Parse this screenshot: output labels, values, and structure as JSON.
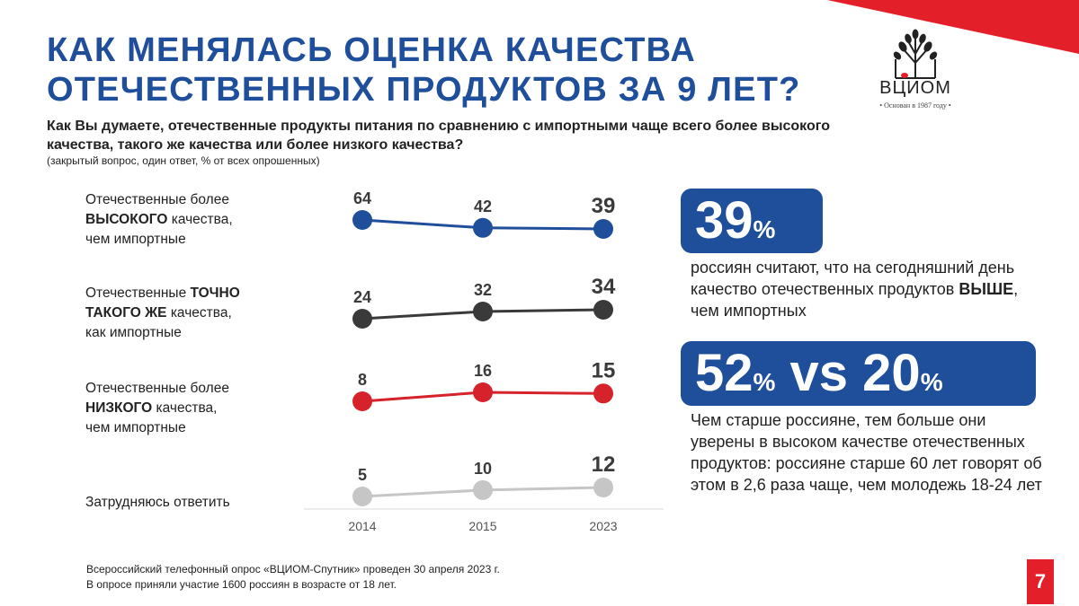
{
  "title": {
    "line1": "КАК МЕНЯЛАСЬ ОЦЕНКА КАЧЕСТВА",
    "line2": "ОТЕЧЕСТВЕННЫХ ПРОДУКТОВ ЗА 9 ЛЕТ?"
  },
  "logo": {
    "name": "ВЦИОМ",
    "tagline": "• Основан в 1987 году •"
  },
  "question": {
    "text": "Как Вы думаете, отечественные продукты питания по сравнению с импортными чаще всего более высокого качества, такого же качества или более низкого качества?",
    "note": "(закрытый вопрос, один ответ, % от всех опрошенных)"
  },
  "row_labels": {
    "higher": {
      "pre": "Отечественные более",
      "bold": "ВЫСОКОГО",
      "post": "качества,",
      "end": "чем импортные"
    },
    "same": {
      "pre": "Отечественные",
      "bold1": "ТОЧНО",
      "bold2": "ТАКОГО ЖЕ",
      "post": "качества,",
      "end": "как импортные"
    },
    "lower": {
      "pre": "Отечественные более",
      "bold": "НИЗКОГО",
      "post": "качества,",
      "end": "чем импортные"
    },
    "unsure": "Затрудняюсь ответить"
  },
  "chart_data": {
    "type": "line",
    "title": "Как Вы думаете, отечественные продукты питания по сравнению с импортными чаще всего более высокого качества, такого же качества или более низкого качества?",
    "xlabel": "",
    "ylabel": "% от всех опрошенных",
    "categories": [
      "2014",
      "2015",
      "2023"
    ],
    "series": [
      {
        "name": "Отечественные более ВЫСОКОГО качества, чем импортные",
        "values": [
          64,
          42,
          39
        ],
        "color": "#1f4e9a"
      },
      {
        "name": "Отечественные ТОЧНО ТАКОГО ЖЕ качества, как импортные",
        "values": [
          24,
          32,
          34
        ],
        "color": "#3a3a3a"
      },
      {
        "name": "Отечественные более НИЗКОГО качества, чем импортные",
        "values": [
          8,
          16,
          15
        ],
        "color": "#d5222b"
      },
      {
        "name": "Затрудняюсь ответить",
        "values": [
          5,
          10,
          12
        ],
        "color": "#c6c6c6"
      }
    ]
  },
  "callouts": [
    {
      "big": "39",
      "pct": "%",
      "text_pre": "россиян считают, что на сегодняшний день качество отечественных продуктов",
      "text_bold": "ВЫШЕ",
      "text_post": ", чем импортных"
    },
    {
      "big1": "52",
      "pct1": "%",
      "vs": " vs ",
      "big2": "20",
      "pct2": "%",
      "text": "Чем старше россияне, тем больше они уверены в высоком качестве отечественных продуктов: россияне старше 60 лет говорят об этом в 2,6 раза чаще, чем молодежь 18-24 лет"
    }
  ],
  "footnote": {
    "line1": "Всероссийский телефонный опрос «ВЦИОМ-Спутник» проведен 30 апреля 2023 г.",
    "line2": "В опросе приняли участие 1600 россиян в возрасте от 18 лет."
  },
  "page_number": "7",
  "colors": {
    "brand_blue": "#1f4e9a",
    "accent_red": "#e3202a"
  }
}
